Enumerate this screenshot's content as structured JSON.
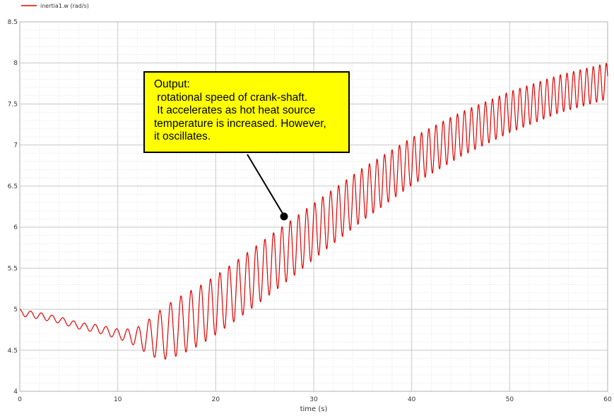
{
  "legend": {
    "label": "inertia1.w (rad/s)"
  },
  "callout": {
    "lines": [
      "Output:",
      " rotational speed of crank-shaft.",
      " It accelerates as hot heat source",
      "temperature is increased. However,",
      "it oscillates."
    ]
  },
  "colors": {
    "series": "#e00000",
    "grid_major": "#c8c8c8",
    "grid_minor": "#e2e2e2",
    "callout_fill": "#ffff00"
  },
  "chart_data": {
    "type": "line",
    "title": "",
    "xlabel": "time (s)",
    "ylabel": "",
    "xlim": [
      0,
      60
    ],
    "ylim": [
      4,
      8.5
    ],
    "xticks": [
      "0",
      "10",
      "20",
      "30",
      "40",
      "50",
      "60"
    ],
    "yticks": [
      "4",
      "4.5",
      "5",
      "5.5",
      "6",
      "6.5",
      "7",
      "7.5",
      "8",
      "8.5"
    ],
    "grid": true,
    "legend_position": "top-left",
    "series": [
      {
        "name": "inertia1.w (rad/s)",
        "description_points": {
          "x": [
            0,
            2,
            4,
            6,
            8,
            10,
            11,
            12,
            13,
            14,
            15,
            16,
            17,
            18,
            19,
            20,
            22,
            24,
            26,
            28,
            30,
            35,
            40,
            45,
            50,
            55,
            60
          ],
          "center": [
            4.96,
            4.92,
            4.87,
            4.8,
            4.76,
            4.7,
            4.68,
            4.66,
            4.66,
            4.68,
            4.72,
            4.78,
            4.84,
            4.9,
            4.97,
            5.05,
            5.22,
            5.4,
            5.58,
            5.76,
            5.95,
            6.4,
            6.8,
            7.13,
            7.4,
            7.62,
            7.78
          ],
          "amplitude": [
            0.04,
            0.04,
            0.04,
            0.04,
            0.05,
            0.06,
            0.08,
            0.12,
            0.2,
            0.28,
            0.33,
            0.35,
            0.36,
            0.36,
            0.36,
            0.36,
            0.36,
            0.36,
            0.36,
            0.35,
            0.34,
            0.32,
            0.29,
            0.27,
            0.25,
            0.23,
            0.22
          ],
          "period_s": [
            1.1,
            1.1,
            1.1,
            1.1,
            1.1,
            1.1,
            1.1,
            1.1,
            1.1,
            1.1,
            1.1,
            1.05,
            1.03,
            1.0,
            0.98,
            0.96,
            0.93,
            0.9,
            0.87,
            0.84,
            0.82,
            0.78,
            0.75,
            0.72,
            0.7,
            0.68,
            0.66
          ]
        }
      }
    ]
  }
}
